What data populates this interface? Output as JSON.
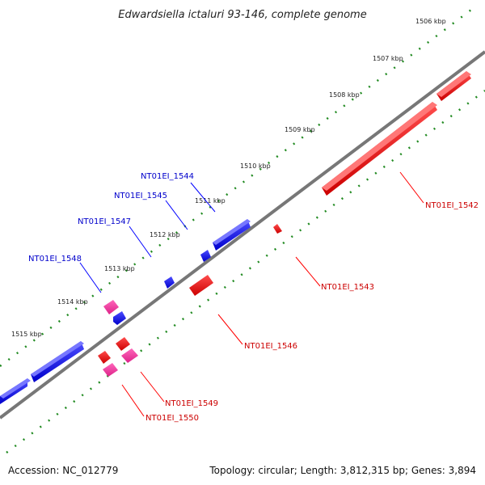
{
  "title": "Edwardsiella ictaluri 93-146, complete genome",
  "footer": {
    "accession": "Accession: NC_012779",
    "summary": "Topology: circular; Length: 3,812,315 bp; Genes: 3,894"
  },
  "ticks": [
    "1506 kbp",
    "1507 kbp",
    "1508 kbp",
    "1509 kbp",
    "1510 kbp",
    "1511 kbp",
    "1512 kbp",
    "1513 kbp",
    "1514 kbp",
    "1515 kbp"
  ],
  "genes": [
    {
      "label": "NT01EI_1542",
      "strand": "reverse"
    },
    {
      "label": "NT01EI_1543",
      "strand": "reverse"
    },
    {
      "label": "NT01EI_1544",
      "strand": "forward"
    },
    {
      "label": "NT01EI_1545",
      "strand": "forward"
    },
    {
      "label": "NT01EI_1546",
      "strand": "reverse"
    },
    {
      "label": "NT01EI_1547",
      "strand": "forward"
    },
    {
      "label": "NT01EI_1548",
      "strand": "forward"
    },
    {
      "label": "NT01EI_1549",
      "strand": "reverse"
    },
    {
      "label": "NT01EI_1550",
      "strand": "reverse"
    }
  ],
  "colors": {
    "forward": "#0000ff",
    "reverse": "#ff0000",
    "rna": "#ff3399",
    "backbone": "#808080",
    "ticks": "#228b22"
  }
}
